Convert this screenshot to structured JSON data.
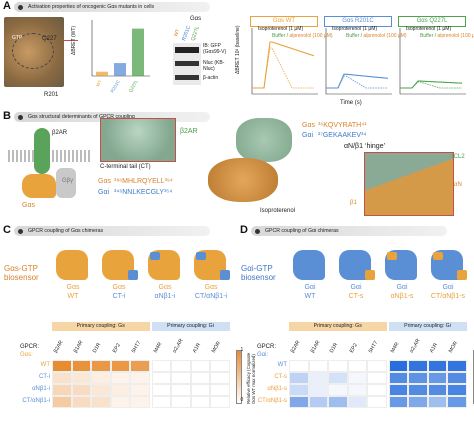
{
  "panelA": {
    "letter": "A",
    "banner": "Activation properties of oncogenic Gαs mutants in cells",
    "struct_labels": {
      "q227": "Q227",
      "r201": "R201",
      "gtp": "GTP"
    },
    "bar_ylabel": "ΔBRET (WT)",
    "blot_title": "Gαs",
    "blot_cols": [
      "WT",
      "R201C",
      "Q227L"
    ],
    "blot_labels": [
      "IB: GFP (Gαs99-V)",
      "Nluc (KB-Nluc)",
      "β-actin"
    ],
    "tc_ylabel": "ΔBRET 10³ (baseline)",
    "tc_xlabel": "Time (s)",
    "tc_titles": [
      "Gαs WT",
      "Gαs R201C",
      "Gαs Q227L"
    ],
    "iso": "Isoproterenol (1 μM)",
    "buffer": "Buffer",
    "alp": "alprenolol (100 μM)"
  },
  "panelB": {
    "letter": "B",
    "banner": "Gαs structural determinants of GPCR coupling",
    "b2ar": "β2AR",
    "gas": "Gαs",
    "gbg": "Gβγ",
    "ct_label": "C-terminal tail (CT)",
    "seq_s": "³⁸⁶MHLRQYELL³⁹⁴",
    "seq_i": "³⁴⁶NNLKECGLY³⁵⁴",
    "seq_s_name": "Gαs",
    "seq_i_name": "Gαi",
    "b2ar_right": "β2AR",
    "gas_r": "Gαs",
    "gai_r": "Gαi",
    "hinge_s": "³⁶KQVYRATH⁴¹",
    "hinge_i": "²⁷GEKAAKEV³⁴",
    "hinge_label": "αN/β1 ‘hinge’",
    "icl2": "ICL2",
    "iso": "Isoproterenol",
    "an": "αN",
    "b1": "β1"
  },
  "panelC": {
    "letter": "C",
    "banner": "GPCR coupling of Gαs chimeras",
    "biosensor": "Gαs-GTP biosensor",
    "constructs": [
      {
        "l1": "Gαs",
        "l2": "WT"
      },
      {
        "l1": "Gαs",
        "l2": "CT-i"
      },
      {
        "l1": "Gαs",
        "l2": "αNβ1-i"
      },
      {
        "l1": "Gαs",
        "l2": "CT/αNβ1-i"
      }
    ],
    "primary_gs": "Primary coupling: Gs",
    "primary_gi": "Primary coupling: Gi",
    "gpcr": "GPCR:",
    "row_head": "Gαs:",
    "receptors_gs": [
      "β2AR",
      "β1AR",
      "D1R",
      "EP2",
      "5HT7"
    ],
    "receptors_gi": [
      "M4R",
      "α2₂AR",
      "A1R",
      "MOR"
    ],
    "rows": [
      "WT",
      "CT-i",
      "αNβ1-i",
      "CT/αNβ1-i"
    ],
    "cb_label": "Relative efficacy (Cognate Gαs WT max normalized)",
    "cb_max": "1",
    "cb_min": "0"
  },
  "panelD": {
    "letter": "D",
    "banner": "GPCR coupling of Gαi chimeras",
    "biosensor": "Gαi-GTP biosensor",
    "constructs": [
      {
        "l1": "Gαi",
        "l2": "WT"
      },
      {
        "l1": "Gαi",
        "l2": "CT-s"
      },
      {
        "l1": "Gαi",
        "l2": "αNβ1-s"
      },
      {
        "l1": "Gαi",
        "l2": "CT/αNβ1-s"
      }
    ],
    "primary_gs": "Primary coupling: Gs",
    "primary_gi": "Primary coupling: Gi",
    "gpcr": "GPCR:",
    "row_head": "Gαi:",
    "receptors_gs": [
      "β2AR",
      "β1AR",
      "D1R",
      "EP2",
      "5HT7"
    ],
    "receptors_gi": [
      "M4R",
      "α2₂AR",
      "A1R",
      "MOR"
    ],
    "rows": [
      "WT",
      "CT-s",
      "αNβ1-s",
      "CT/αNβ1-s"
    ],
    "cb_label": "Relative efficacy (Cognate Gαi WT max normalized)",
    "cb_max": "1",
    "cb_min": "0"
  },
  "colors": {
    "gs": "#e8a33c",
    "gi": "#5a8fd6",
    "green": "#4fa24f",
    "gray": "#9a9a9a"
  },
  "chart_data": [
    {
      "type": "bar",
      "categories": [
        "WT",
        "R201C",
        "Q227L"
      ],
      "ylabel": "ΔBRET (WT)",
      "values": [
        1,
        3,
        11
      ],
      "ylim": [
        0,
        13
      ]
    },
    {
      "type": "heatmap",
      "rows": [
        "WT",
        "CT-i",
        "αNβ1-i",
        "CT/αNβ1-i"
      ],
      "columns": [
        "β2AR",
        "β1AR",
        "D1R",
        "EP2",
        "5HT7",
        "M4R",
        "α2₂AR",
        "A1R",
        "MOR"
      ],
      "values": [
        [
          1.0,
          0.95,
          0.9,
          0.9,
          0.85,
          0,
          0,
          0,
          0
        ],
        [
          0.25,
          0.2,
          0.15,
          0.1,
          0.1,
          0,
          0,
          0,
          0
        ],
        [
          0.35,
          0.3,
          0.2,
          0.15,
          0.1,
          0,
          0,
          0,
          0
        ],
        [
          0.45,
          0.3,
          0.25,
          0.1,
          0.1,
          0,
          0,
          0,
          0
        ]
      ]
    },
    {
      "type": "heatmap",
      "rows": [
        "WT",
        "CT-s",
        "αNβ1-s",
        "CT/αNβ1-s"
      ],
      "columns": [
        "β2AR",
        "β1AR",
        "D1R",
        "EP2",
        "5HT7",
        "M4R",
        "α2₂AR",
        "A1R",
        "MOR"
      ],
      "values": [
        [
          0,
          0,
          0,
          0,
          0,
          1.0,
          0.95,
          0.95,
          0.95
        ],
        [
          0.3,
          0.1,
          0.2,
          0.05,
          0,
          0.8,
          0.75,
          0.7,
          0.8
        ],
        [
          0.25,
          0.1,
          0.05,
          0.05,
          0,
          0.85,
          0.8,
          0.8,
          0.85
        ],
        [
          0.6,
          0.35,
          0.45,
          0.15,
          0,
          0.7,
          0.6,
          0.45,
          0.7
        ]
      ]
    }
  ]
}
